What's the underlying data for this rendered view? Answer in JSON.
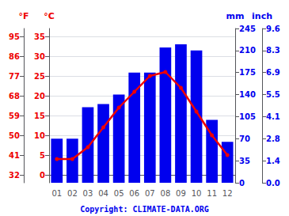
{
  "chart_data": {
    "type": "bar",
    "categories": [
      "01",
      "02",
      "03",
      "04",
      "05",
      "06",
      "07",
      "08",
      "09",
      "10",
      "11",
      "12"
    ],
    "series": [
      {
        "type": "bar",
        "axis": "y2",
        "color": "#0000ee",
        "values": [
          70,
          70,
          120,
          125,
          140,
          175,
          175,
          215,
          220,
          210,
          100,
          65
        ]
      },
      {
        "type": "line",
        "axis": "y",
        "color": "#ee0000",
        "marker": "circle",
        "values": [
          4.0,
          4.0,
          7.0,
          12.0,
          17.0,
          21.0,
          25.0,
          26.0,
          22.0,
          16.0,
          10.0,
          5.0
        ]
      }
    ],
    "ylabel": "°C",
    "ylim": [
      -2.0,
      37.0
    ],
    "yticks": [
      0,
      5,
      10,
      15,
      20,
      25,
      30,
      35
    ],
    "y3label": "°F",
    "y3lim": [
      28.4,
      98.6
    ],
    "y3ticks": [
      32,
      41,
      50,
      59,
      68,
      77,
      86,
      95
    ],
    "y2label": "mm",
    "y2lim": [
      0,
      245
    ],
    "y2ticks": [
      0,
      35,
      70,
      105,
      140,
      175,
      210,
      245
    ],
    "y4label": "inch",
    "y4lim": [
      0,
      9.64567
    ],
    "y4ticks": [
      {
        "value": 0,
        "label": "0.0"
      },
      {
        "value": 1.37795,
        "label": "1.4"
      },
      {
        "value": 2.75591,
        "label": "2.8"
      },
      {
        "value": 4.13386,
        "label": "4.1"
      },
      {
        "value": 5.51181,
        "label": "5.5"
      },
      {
        "value": 6.88976,
        "label": "6.9"
      },
      {
        "value": 8.26772,
        "label": "8.3"
      },
      {
        "value": 9.64567,
        "label": "9.6"
      }
    ],
    "grid": true,
    "annotation": "Copyright: CLIMATE-DATA.ORG"
  }
}
